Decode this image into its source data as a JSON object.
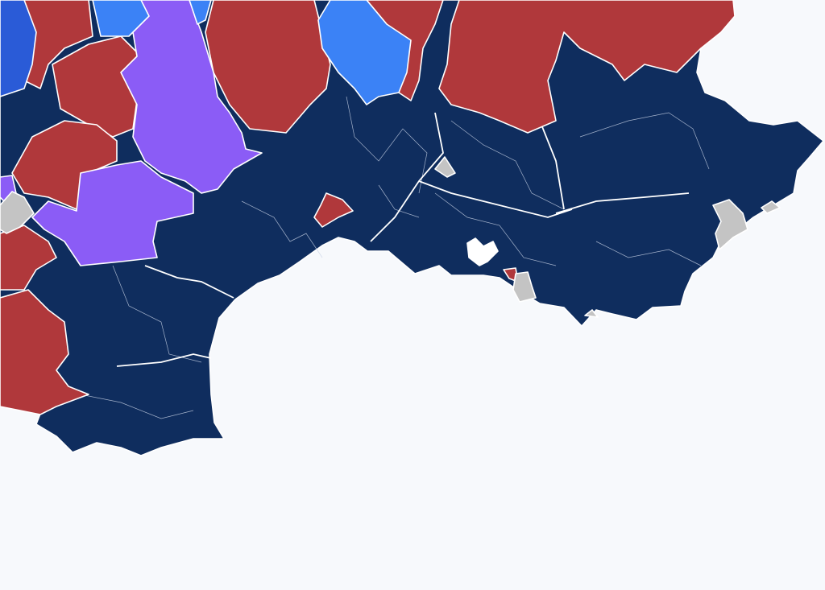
{
  "map": {
    "colors": {
      "background": "#f7f9fc",
      "navy": "#0f2d5e",
      "red": "#b0383b",
      "purple": "#8b5cf6",
      "blue": "#3b82f6",
      "dark_blue": "#2a5bd7",
      "gray": "#c4c4c4",
      "water": "#ffffff"
    },
    "regions": [
      {
        "id": "land-base",
        "category": "navy"
      },
      {
        "id": "red-nw-1",
        "category": "red"
      },
      {
        "id": "red-nw-2",
        "category": "red"
      },
      {
        "id": "red-w-1",
        "category": "red"
      },
      {
        "id": "red-w-2",
        "category": "red"
      },
      {
        "id": "red-sw",
        "category": "red"
      },
      {
        "id": "red-n-center",
        "category": "red"
      },
      {
        "id": "red-n-east",
        "category": "red"
      },
      {
        "id": "red-ne",
        "category": "red"
      },
      {
        "id": "red-coast-small",
        "category": "red"
      },
      {
        "id": "red-toulon-small",
        "category": "red"
      },
      {
        "id": "purple-center",
        "category": "purple"
      },
      {
        "id": "purple-west",
        "category": "purple"
      },
      {
        "id": "purple-small",
        "category": "purple"
      },
      {
        "id": "blue-north",
        "category": "blue"
      },
      {
        "id": "blue-north-small",
        "category": "blue"
      },
      {
        "id": "blue-north-left",
        "category": "blue"
      },
      {
        "id": "darkblue-west",
        "category": "dark_blue"
      },
      {
        "id": "gray-west",
        "category": "gray"
      },
      {
        "id": "gray-center",
        "category": "gray"
      },
      {
        "id": "gray-toulon",
        "category": "gray"
      },
      {
        "id": "gray-nice",
        "category": "gray"
      },
      {
        "id": "gray-east",
        "category": "gray"
      },
      {
        "id": "gray-south",
        "category": "gray"
      },
      {
        "id": "lake-berre",
        "category": "water"
      }
    ]
  }
}
